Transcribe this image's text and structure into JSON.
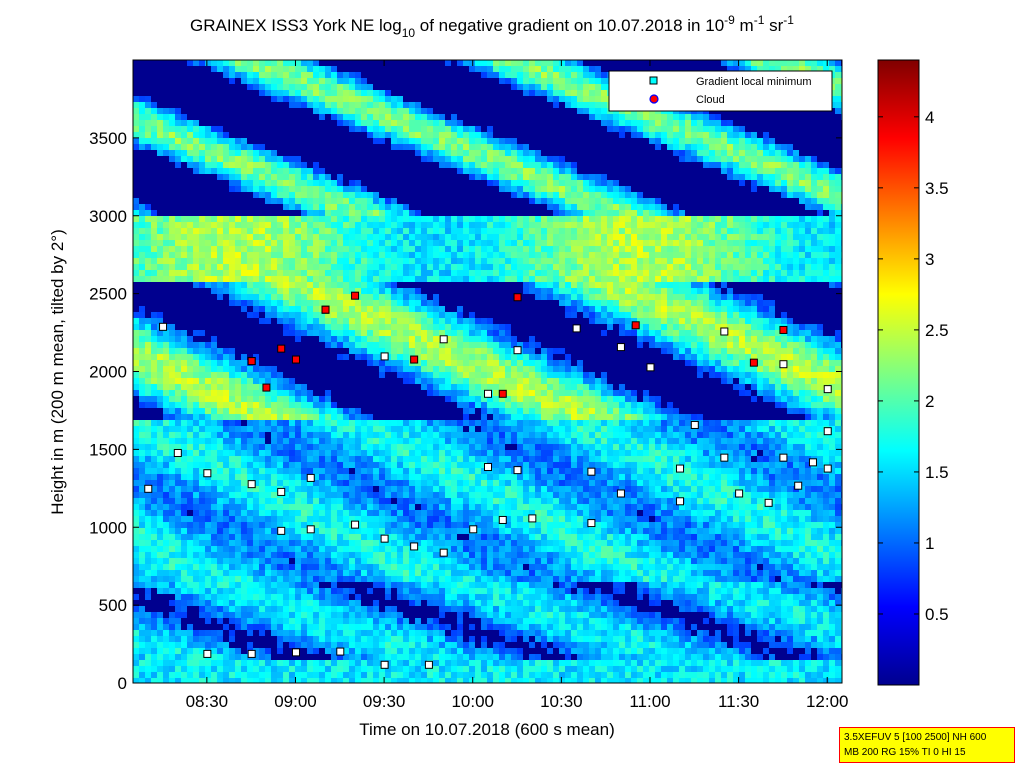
{
  "chart_data": {
    "type": "heatmap",
    "title_parts": {
      "pre": "GRAINEX ISS3 York NE log",
      "sub": "10",
      "mid": " of negative gradient on 10.07.2018 in 10",
      "sup1": "-9",
      "mid2": " m",
      "sup2": "-1",
      "mid3": " sr",
      "sup3": "-1"
    },
    "xlabel": "Time on 10.07.2018 (600 s mean)",
    "ylabel": "Height in m (200 m mean, tilted by 2°)",
    "xlim": [
      "08:05",
      "12:05"
    ],
    "ylim": [
      0,
      4000
    ],
    "x_ticks": [
      "08:30",
      "09:00",
      "09:30",
      "10:00",
      "10:30",
      "11:00",
      "11:30",
      "12:00"
    ],
    "y_ticks": [
      0,
      500,
      1000,
      1500,
      2000,
      2500,
      3000,
      3500
    ],
    "colorbar": {
      "min": 0,
      "max": 4.4,
      "ticks": [
        "0.5",
        "1",
        "1.5",
        "2",
        "2.5",
        "3",
        "3.5",
        "4"
      ]
    },
    "legend": {
      "position": "top-right",
      "entries": [
        {
          "label": "Gradient local minimum",
          "color": "#00ffff",
          "marker": "square"
        },
        {
          "label": "Cloud",
          "color": "#ff0000",
          "marker": "circle"
        }
      ]
    },
    "series": [
      {
        "name": "Gradient local minimum",
        "points": [
          [
            "08:30",
            190
          ],
          [
            "08:45",
            190
          ],
          [
            "09:00",
            200
          ],
          [
            "09:15",
            205
          ],
          [
            "09:30",
            120
          ],
          [
            "09:45",
            120
          ],
          [
            "08:55",
            980
          ],
          [
            "09:05",
            990
          ],
          [
            "09:20",
            1020
          ],
          [
            "09:30",
            930
          ],
          [
            "09:40",
            880
          ],
          [
            "09:50",
            840
          ],
          [
            "10:00",
            990
          ],
          [
            "10:10",
            1050
          ],
          [
            "10:20",
            1060
          ],
          [
            "08:30",
            1350
          ],
          [
            "08:45",
            1280
          ],
          [
            "08:55",
            1230
          ],
          [
            "09:05",
            1320
          ],
          [
            "10:05",
            1390
          ],
          [
            "10:15",
            1370
          ],
          [
            "10:40",
            1360
          ],
          [
            "10:50",
            1220
          ],
          [
            "11:10",
            1380
          ],
          [
            "11:25",
            1450
          ],
          [
            "11:45",
            1450
          ],
          [
            "11:55",
            1420
          ],
          [
            "12:00",
            1380
          ],
          [
            "11:10",
            1170
          ],
          [
            "11:30",
            1220
          ],
          [
            "11:40",
            1160
          ],
          [
            "11:50",
            1270
          ],
          [
            "08:15",
            2290
          ],
          [
            "08:45",
            2070
          ],
          [
            "09:00",
            2080
          ],
          [
            "09:10",
            2400
          ],
          [
            "09:30",
            2100
          ],
          [
            "09:50",
            2210
          ],
          [
            "10:05",
            1860
          ],
          [
            "10:15",
            2140
          ],
          [
            "10:35",
            2280
          ],
          [
            "10:50",
            2160
          ],
          [
            "11:00",
            2030
          ],
          [
            "11:25",
            2260
          ],
          [
            "11:45",
            2050
          ],
          [
            "12:00",
            1890
          ],
          [
            "08:10",
            1250
          ],
          [
            "08:20",
            1480
          ],
          [
            "10:40",
            1030
          ],
          [
            "11:15",
            1660
          ],
          [
            "12:00",
            1620
          ]
        ]
      },
      {
        "name": "Cloud",
        "points": [
          [
            "08:45",
            2070
          ],
          [
            "09:00",
            2080
          ],
          [
            "09:10",
            2400
          ],
          [
            "09:20",
            2490
          ],
          [
            "09:40",
            2080
          ],
          [
            "10:10",
            1860
          ],
          [
            "10:15",
            2480
          ],
          [
            "10:55",
            2300
          ],
          [
            "11:35",
            2060
          ],
          [
            "11:45",
            2270
          ],
          [
            "08:50",
            1900
          ],
          [
            "08:55",
            2150
          ]
        ]
      }
    ]
  },
  "infobox": {
    "line1": "3.5XEFUV 5 [100 2500] NH 600",
    "line2": "MB 200 RG 15% TI 0 HI 15"
  }
}
